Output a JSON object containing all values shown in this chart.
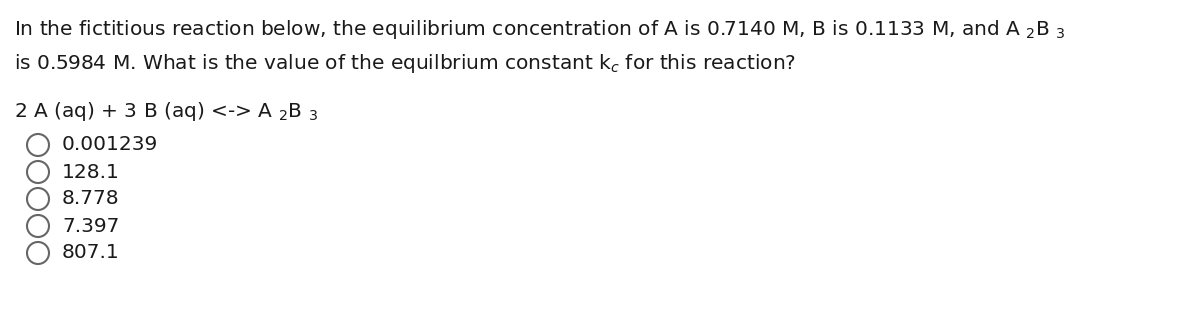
{
  "background_color": "#ffffff",
  "figsize": [
    12.0,
    3.19
  ],
  "dpi": 100,
  "line1": "In the fictitious reaction below, the equilibrium concentration of A is 0.7140 M, B is 0.1133 M, and A $_{2}$B $_{3}$",
  "line2": "is 0.5984 M. What is the value of the equilbrium constant k$_{c}$ for this reaction?",
  "reaction": "2 A (aq) + 3 B (aq) <-> A $_{2}$B $_{3}$",
  "choices": [
    "0.001239",
    "128.1",
    "8.778",
    "7.397",
    "807.1"
  ],
  "text_color": "#1a1a1a",
  "font_size": 14.5,
  "circle_color": "#666666",
  "circle_linewidth": 1.5
}
